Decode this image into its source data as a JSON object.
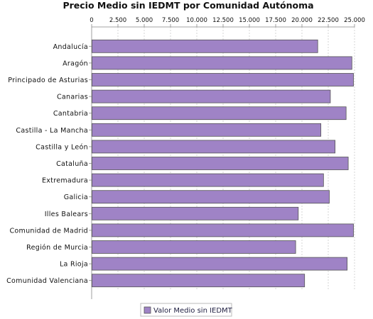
{
  "chart_data": {
    "type": "bar",
    "orientation": "horizontal",
    "title": "Precio Medio sin IEDMT por Comunidad Autónoma",
    "xlabel": "",
    "ylabel": "",
    "xlim": [
      0,
      25000
    ],
    "tick_values": [
      0,
      2500,
      5000,
      7500,
      10000,
      12500,
      15000,
      17500,
      20000,
      22500,
      25000
    ],
    "tick_labels": [
      "0",
      "2.500",
      "5.000",
      "7.500",
      "10.000",
      "12.500",
      "15.000",
      "17.500",
      "20.000",
      "22.500",
      "25.000"
    ],
    "axis_position": "top",
    "grid": true,
    "legend_position": "bottom",
    "bar_color": "#9f83c6",
    "bar_border_color": "#555555",
    "categories": [
      "Andalucía",
      "Aragón",
      "Principado de Asturias",
      "Canarias",
      "Cantabria",
      "Castilla - La Mancha",
      "Castilla y León",
      "Cataluña",
      "Extremadura",
      "Galicia",
      "Illes Balears",
      "Comunidad de Madrid",
      "Región de Murcia",
      "La Rioja",
      "Comunidad Valenciana"
    ],
    "series": [
      {
        "name": "Valor Medio sin IEDMT",
        "values": [
          21500,
          24750,
          24900,
          22700,
          24200,
          21800,
          23150,
          24400,
          22050,
          22600,
          19650,
          24900,
          19400,
          24300,
          20250
        ]
      }
    ]
  }
}
